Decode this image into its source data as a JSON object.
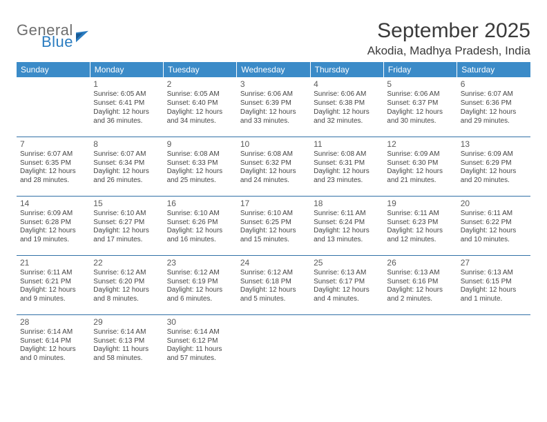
{
  "brand": {
    "word1": "General",
    "word2": "Blue"
  },
  "header": {
    "month_title": "September 2025",
    "location": "Akodia, Madhya Pradesh, India"
  },
  "colors": {
    "header_bg": "#3b8bc8",
    "header_text": "#ffffff",
    "divider": "#2f6fa6",
    "body_text": "#3a3a3a",
    "brand_blue": "#2a7cc0",
    "brand_grey": "#6e6e6e"
  },
  "weekdays": [
    "Sunday",
    "Monday",
    "Tuesday",
    "Wednesday",
    "Thursday",
    "Friday",
    "Saturday"
  ],
  "weeks": [
    [
      null,
      {
        "n": "1",
        "sr": "Sunrise: 6:05 AM",
        "ss": "Sunset: 6:41 PM",
        "d1": "Daylight: 12 hours",
        "d2": "and 36 minutes."
      },
      {
        "n": "2",
        "sr": "Sunrise: 6:05 AM",
        "ss": "Sunset: 6:40 PM",
        "d1": "Daylight: 12 hours",
        "d2": "and 34 minutes."
      },
      {
        "n": "3",
        "sr": "Sunrise: 6:06 AM",
        "ss": "Sunset: 6:39 PM",
        "d1": "Daylight: 12 hours",
        "d2": "and 33 minutes."
      },
      {
        "n": "4",
        "sr": "Sunrise: 6:06 AM",
        "ss": "Sunset: 6:38 PM",
        "d1": "Daylight: 12 hours",
        "d2": "and 32 minutes."
      },
      {
        "n": "5",
        "sr": "Sunrise: 6:06 AM",
        "ss": "Sunset: 6:37 PM",
        "d1": "Daylight: 12 hours",
        "d2": "and 30 minutes."
      },
      {
        "n": "6",
        "sr": "Sunrise: 6:07 AM",
        "ss": "Sunset: 6:36 PM",
        "d1": "Daylight: 12 hours",
        "d2": "and 29 minutes."
      }
    ],
    [
      {
        "n": "7",
        "sr": "Sunrise: 6:07 AM",
        "ss": "Sunset: 6:35 PM",
        "d1": "Daylight: 12 hours",
        "d2": "and 28 minutes."
      },
      {
        "n": "8",
        "sr": "Sunrise: 6:07 AM",
        "ss": "Sunset: 6:34 PM",
        "d1": "Daylight: 12 hours",
        "d2": "and 26 minutes."
      },
      {
        "n": "9",
        "sr": "Sunrise: 6:08 AM",
        "ss": "Sunset: 6:33 PM",
        "d1": "Daylight: 12 hours",
        "d2": "and 25 minutes."
      },
      {
        "n": "10",
        "sr": "Sunrise: 6:08 AM",
        "ss": "Sunset: 6:32 PM",
        "d1": "Daylight: 12 hours",
        "d2": "and 24 minutes."
      },
      {
        "n": "11",
        "sr": "Sunrise: 6:08 AM",
        "ss": "Sunset: 6:31 PM",
        "d1": "Daylight: 12 hours",
        "d2": "and 23 minutes."
      },
      {
        "n": "12",
        "sr": "Sunrise: 6:09 AM",
        "ss": "Sunset: 6:30 PM",
        "d1": "Daylight: 12 hours",
        "d2": "and 21 minutes."
      },
      {
        "n": "13",
        "sr": "Sunrise: 6:09 AM",
        "ss": "Sunset: 6:29 PM",
        "d1": "Daylight: 12 hours",
        "d2": "and 20 minutes."
      }
    ],
    [
      {
        "n": "14",
        "sr": "Sunrise: 6:09 AM",
        "ss": "Sunset: 6:28 PM",
        "d1": "Daylight: 12 hours",
        "d2": "and 19 minutes."
      },
      {
        "n": "15",
        "sr": "Sunrise: 6:10 AM",
        "ss": "Sunset: 6:27 PM",
        "d1": "Daylight: 12 hours",
        "d2": "and 17 minutes."
      },
      {
        "n": "16",
        "sr": "Sunrise: 6:10 AM",
        "ss": "Sunset: 6:26 PM",
        "d1": "Daylight: 12 hours",
        "d2": "and 16 minutes."
      },
      {
        "n": "17",
        "sr": "Sunrise: 6:10 AM",
        "ss": "Sunset: 6:25 PM",
        "d1": "Daylight: 12 hours",
        "d2": "and 15 minutes."
      },
      {
        "n": "18",
        "sr": "Sunrise: 6:11 AM",
        "ss": "Sunset: 6:24 PM",
        "d1": "Daylight: 12 hours",
        "d2": "and 13 minutes."
      },
      {
        "n": "19",
        "sr": "Sunrise: 6:11 AM",
        "ss": "Sunset: 6:23 PM",
        "d1": "Daylight: 12 hours",
        "d2": "and 12 minutes."
      },
      {
        "n": "20",
        "sr": "Sunrise: 6:11 AM",
        "ss": "Sunset: 6:22 PM",
        "d1": "Daylight: 12 hours",
        "d2": "and 10 minutes."
      }
    ],
    [
      {
        "n": "21",
        "sr": "Sunrise: 6:11 AM",
        "ss": "Sunset: 6:21 PM",
        "d1": "Daylight: 12 hours",
        "d2": "and 9 minutes."
      },
      {
        "n": "22",
        "sr": "Sunrise: 6:12 AM",
        "ss": "Sunset: 6:20 PM",
        "d1": "Daylight: 12 hours",
        "d2": "and 8 minutes."
      },
      {
        "n": "23",
        "sr": "Sunrise: 6:12 AM",
        "ss": "Sunset: 6:19 PM",
        "d1": "Daylight: 12 hours",
        "d2": "and 6 minutes."
      },
      {
        "n": "24",
        "sr": "Sunrise: 6:12 AM",
        "ss": "Sunset: 6:18 PM",
        "d1": "Daylight: 12 hours",
        "d2": "and 5 minutes."
      },
      {
        "n": "25",
        "sr": "Sunrise: 6:13 AM",
        "ss": "Sunset: 6:17 PM",
        "d1": "Daylight: 12 hours",
        "d2": "and 4 minutes."
      },
      {
        "n": "26",
        "sr": "Sunrise: 6:13 AM",
        "ss": "Sunset: 6:16 PM",
        "d1": "Daylight: 12 hours",
        "d2": "and 2 minutes."
      },
      {
        "n": "27",
        "sr": "Sunrise: 6:13 AM",
        "ss": "Sunset: 6:15 PM",
        "d1": "Daylight: 12 hours",
        "d2": "and 1 minute."
      }
    ],
    [
      {
        "n": "28",
        "sr": "Sunrise: 6:14 AM",
        "ss": "Sunset: 6:14 PM",
        "d1": "Daylight: 12 hours",
        "d2": "and 0 minutes."
      },
      {
        "n": "29",
        "sr": "Sunrise: 6:14 AM",
        "ss": "Sunset: 6:13 PM",
        "d1": "Daylight: 11 hours",
        "d2": "and 58 minutes."
      },
      {
        "n": "30",
        "sr": "Sunrise: 6:14 AM",
        "ss": "Sunset: 6:12 PM",
        "d1": "Daylight: 11 hours",
        "d2": "and 57 minutes."
      },
      null,
      null,
      null,
      null
    ]
  ]
}
